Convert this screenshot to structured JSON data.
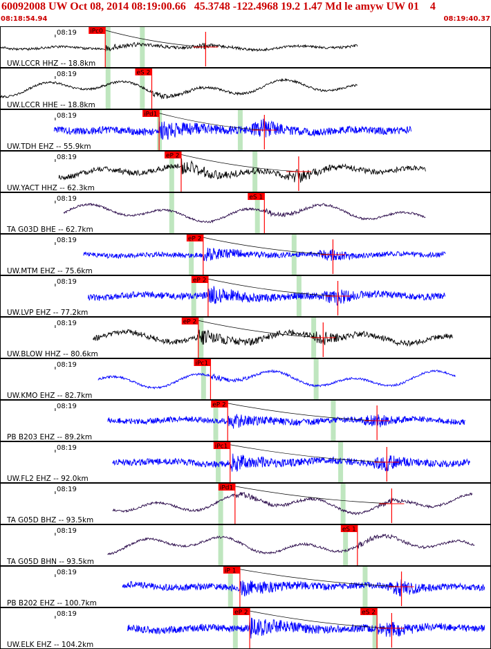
{
  "header": {
    "title": "60092008 UW Oct 08, 2014 08:19:00.66   45.3748 -122.4968 19.2 1.47 Md le amyw UW 01    4",
    "start_time": "08:18:54.94",
    "end_time": "08:19:40.37"
  },
  "colors": {
    "header_text": "#cc0000",
    "pick_box": "#ff0000",
    "pick_line": "#ff0000",
    "window_band": "#bfe6bf",
    "trace_blue": "#0000ff",
    "trace_black": "#000000",
    "trace_purple": "#2a0a4a"
  },
  "chart_data": {
    "type": "line",
    "x_range_time": [
      "08:18:54.94",
      "08:19:40.37"
    ],
    "minute_tick_label": "08:19",
    "traces": [
      {
        "label": "UW.LCCR HHZ -- 18.8km",
        "pick": "iPc0",
        "color": "black",
        "amp": 0.55,
        "freq": "med",
        "start": 0.0,
        "end": 0.73,
        "onset": 0.215,
        "secondary": 0.42,
        "band1": 0.22,
        "band2": 0.29
      },
      {
        "label": "UW.LCCR HHE -- 18.8km",
        "pick": "eS 2",
        "color": "black",
        "amp": 0.5,
        "freq": "low",
        "start": 0.0,
        "end": 0.73,
        "onset": 0.31,
        "secondary": null,
        "band1": 0.22,
        "band2": 0.29
      },
      {
        "label": "UW.TDH EHZ -- 55.9km",
        "pick": "iPd1",
        "color": "blue",
        "amp": 0.45,
        "freq": "high",
        "start": 0.11,
        "end": 0.84,
        "onset": 0.325,
        "secondary": 0.54,
        "band1": 0.325,
        "band2": 0.49
      },
      {
        "label": "UW.YACT HHZ -- 62.3km",
        "pick": "eP 2",
        "color": "black",
        "amp": 0.5,
        "freq": "mix",
        "start": 0.12,
        "end": 0.87,
        "onset": 0.37,
        "secondary": 0.61,
        "band1": 0.35,
        "band2": 0.52
      },
      {
        "label": "TA G03D BHE -- 62.7km",
        "pick": "eS 1",
        "color": "purple",
        "amp": 0.5,
        "freq": "low",
        "start": 0.13,
        "end": 0.87,
        "onset": 0.54,
        "secondary": null,
        "band1": 0.35,
        "band2": 0.525
      },
      {
        "label": "UW.MTM EHZ -- 75.6km",
        "pick": "eP 2",
        "color": "blue",
        "amp": 0.3,
        "freq": "high",
        "start": 0.17,
        "end": 0.91,
        "onset": 0.415,
        "secondary": 0.68,
        "band1": 0.39,
        "band2": 0.6
      },
      {
        "label": "UW.LVP EHZ -- 77.2km",
        "pick": "eP 2",
        "color": "blue",
        "amp": 0.4,
        "freq": "high",
        "start": 0.18,
        "end": 0.91,
        "onset": 0.425,
        "secondary": 0.69,
        "band1": 0.395,
        "band2": 0.61
      },
      {
        "label": "UW.BLOW HHZ -- 80.6km",
        "pick": "eP 2",
        "color": "black",
        "amp": 0.5,
        "freq": "mix",
        "start": 0.19,
        "end": 0.925,
        "onset": 0.405,
        "secondary": 0.66,
        "band1": 0.41,
        "band2": 0.64
      },
      {
        "label": "UW.KMO EHZ -- 82.7km",
        "pick": "iPc1",
        "color": "blue",
        "amp": 0.5,
        "freq": "low",
        "start": 0.2,
        "end": 0.93,
        "onset": 0.43,
        "secondary": null,
        "band1": 0.415,
        "band2": 0.645
      },
      {
        "label": "PB B203 EHZ -- 89.2km",
        "pick": "eP 2",
        "color": "blue",
        "amp": 0.35,
        "freq": "high",
        "start": 0.22,
        "end": 0.95,
        "onset": 0.465,
        "secondary": 0.77,
        "band1": 0.44,
        "band2": 0.68
      },
      {
        "label": "UW.FL2 EHZ -- 92.0km",
        "pick": "iPc1",
        "color": "blue",
        "amp": 0.4,
        "freq": "high",
        "start": 0.23,
        "end": 0.96,
        "onset": 0.47,
        "secondary": 0.79,
        "band1": 0.445,
        "band2": 0.695
      },
      {
        "label": "TA G05D BHZ -- 93.5km",
        "pick": "iPd1",
        "color": "purple",
        "amp": 0.55,
        "freq": "low",
        "start": 0.23,
        "end": 0.965,
        "onset": 0.48,
        "secondary": 0.8,
        "band1": 0.45,
        "band2": 0.7
      },
      {
        "label": "TA G05D BHN -- 93.5km",
        "pick": "eS 1",
        "color": "purple",
        "amp": 0.55,
        "freq": "low",
        "start": 0.22,
        "end": 0.97,
        "onset": 0.73,
        "secondary": null,
        "band1": 0.45,
        "band2": 0.705
      },
      {
        "label": "PB B202 EHZ -- 100.7km",
        "pick": "iP 1",
        "color": "blue",
        "amp": 0.4,
        "freq": "high",
        "start": 0.25,
        "end": 0.99,
        "onset": 0.49,
        "secondary": 0.82,
        "band1": 0.47,
        "band2": 0.745
      },
      {
        "label": "UW.ELK EHZ -- 104.2km",
        "pick": "eP 2",
        "color": "blue",
        "amp": 0.45,
        "freq": "high",
        "start": 0.26,
        "end": 0.99,
        "onset": 0.51,
        "secondary": 0.8,
        "band1": 0.48,
        "band2": 0.765,
        "pick2": "eS 2",
        "pick2_pos": 0.77
      }
    ]
  }
}
